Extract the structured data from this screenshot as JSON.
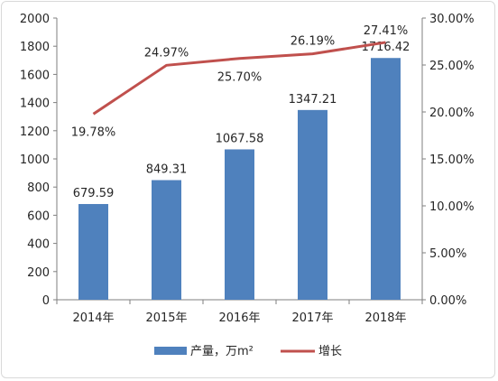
{
  "chart_data": {
    "type": "bar+line",
    "categories": [
      "2014年",
      "2015年",
      "2016年",
      "2017年",
      "2018年"
    ],
    "series": [
      {
        "name": "产量，万m²",
        "type": "bar",
        "axis": "left",
        "values": [
          679.59,
          849.31,
          1067.58,
          1347.21,
          1716.42
        ],
        "labels": [
          "679.59",
          "849.31",
          "1067.58",
          "1347.21",
          "1716.42"
        ]
      },
      {
        "name": "增长",
        "type": "line",
        "axis": "right",
        "values": [
          19.78,
          24.97,
          25.7,
          26.19,
          27.41
        ],
        "labels": [
          "19.78%",
          "24.97%",
          "25.70%",
          "26.19%",
          "27.41%"
        ]
      }
    ],
    "y_left": {
      "min": 0,
      "max": 2000,
      "ticks": [
        "0",
        "200",
        "400",
        "600",
        "800",
        "1000",
        "1200",
        "1400",
        "1600",
        "1800",
        "2000"
      ]
    },
    "y_right": {
      "min": 0,
      "max": 30,
      "ticks": [
        "0.00%",
        "5.00%",
        "10.00%",
        "15.00%",
        "20.00%",
        "25.00%",
        "30.00%"
      ]
    },
    "legend_position": "bottom",
    "grid": false,
    "colors": {
      "bar": "#4f81bd",
      "line": "#c0504d",
      "axis": "#7f7f7f"
    }
  }
}
